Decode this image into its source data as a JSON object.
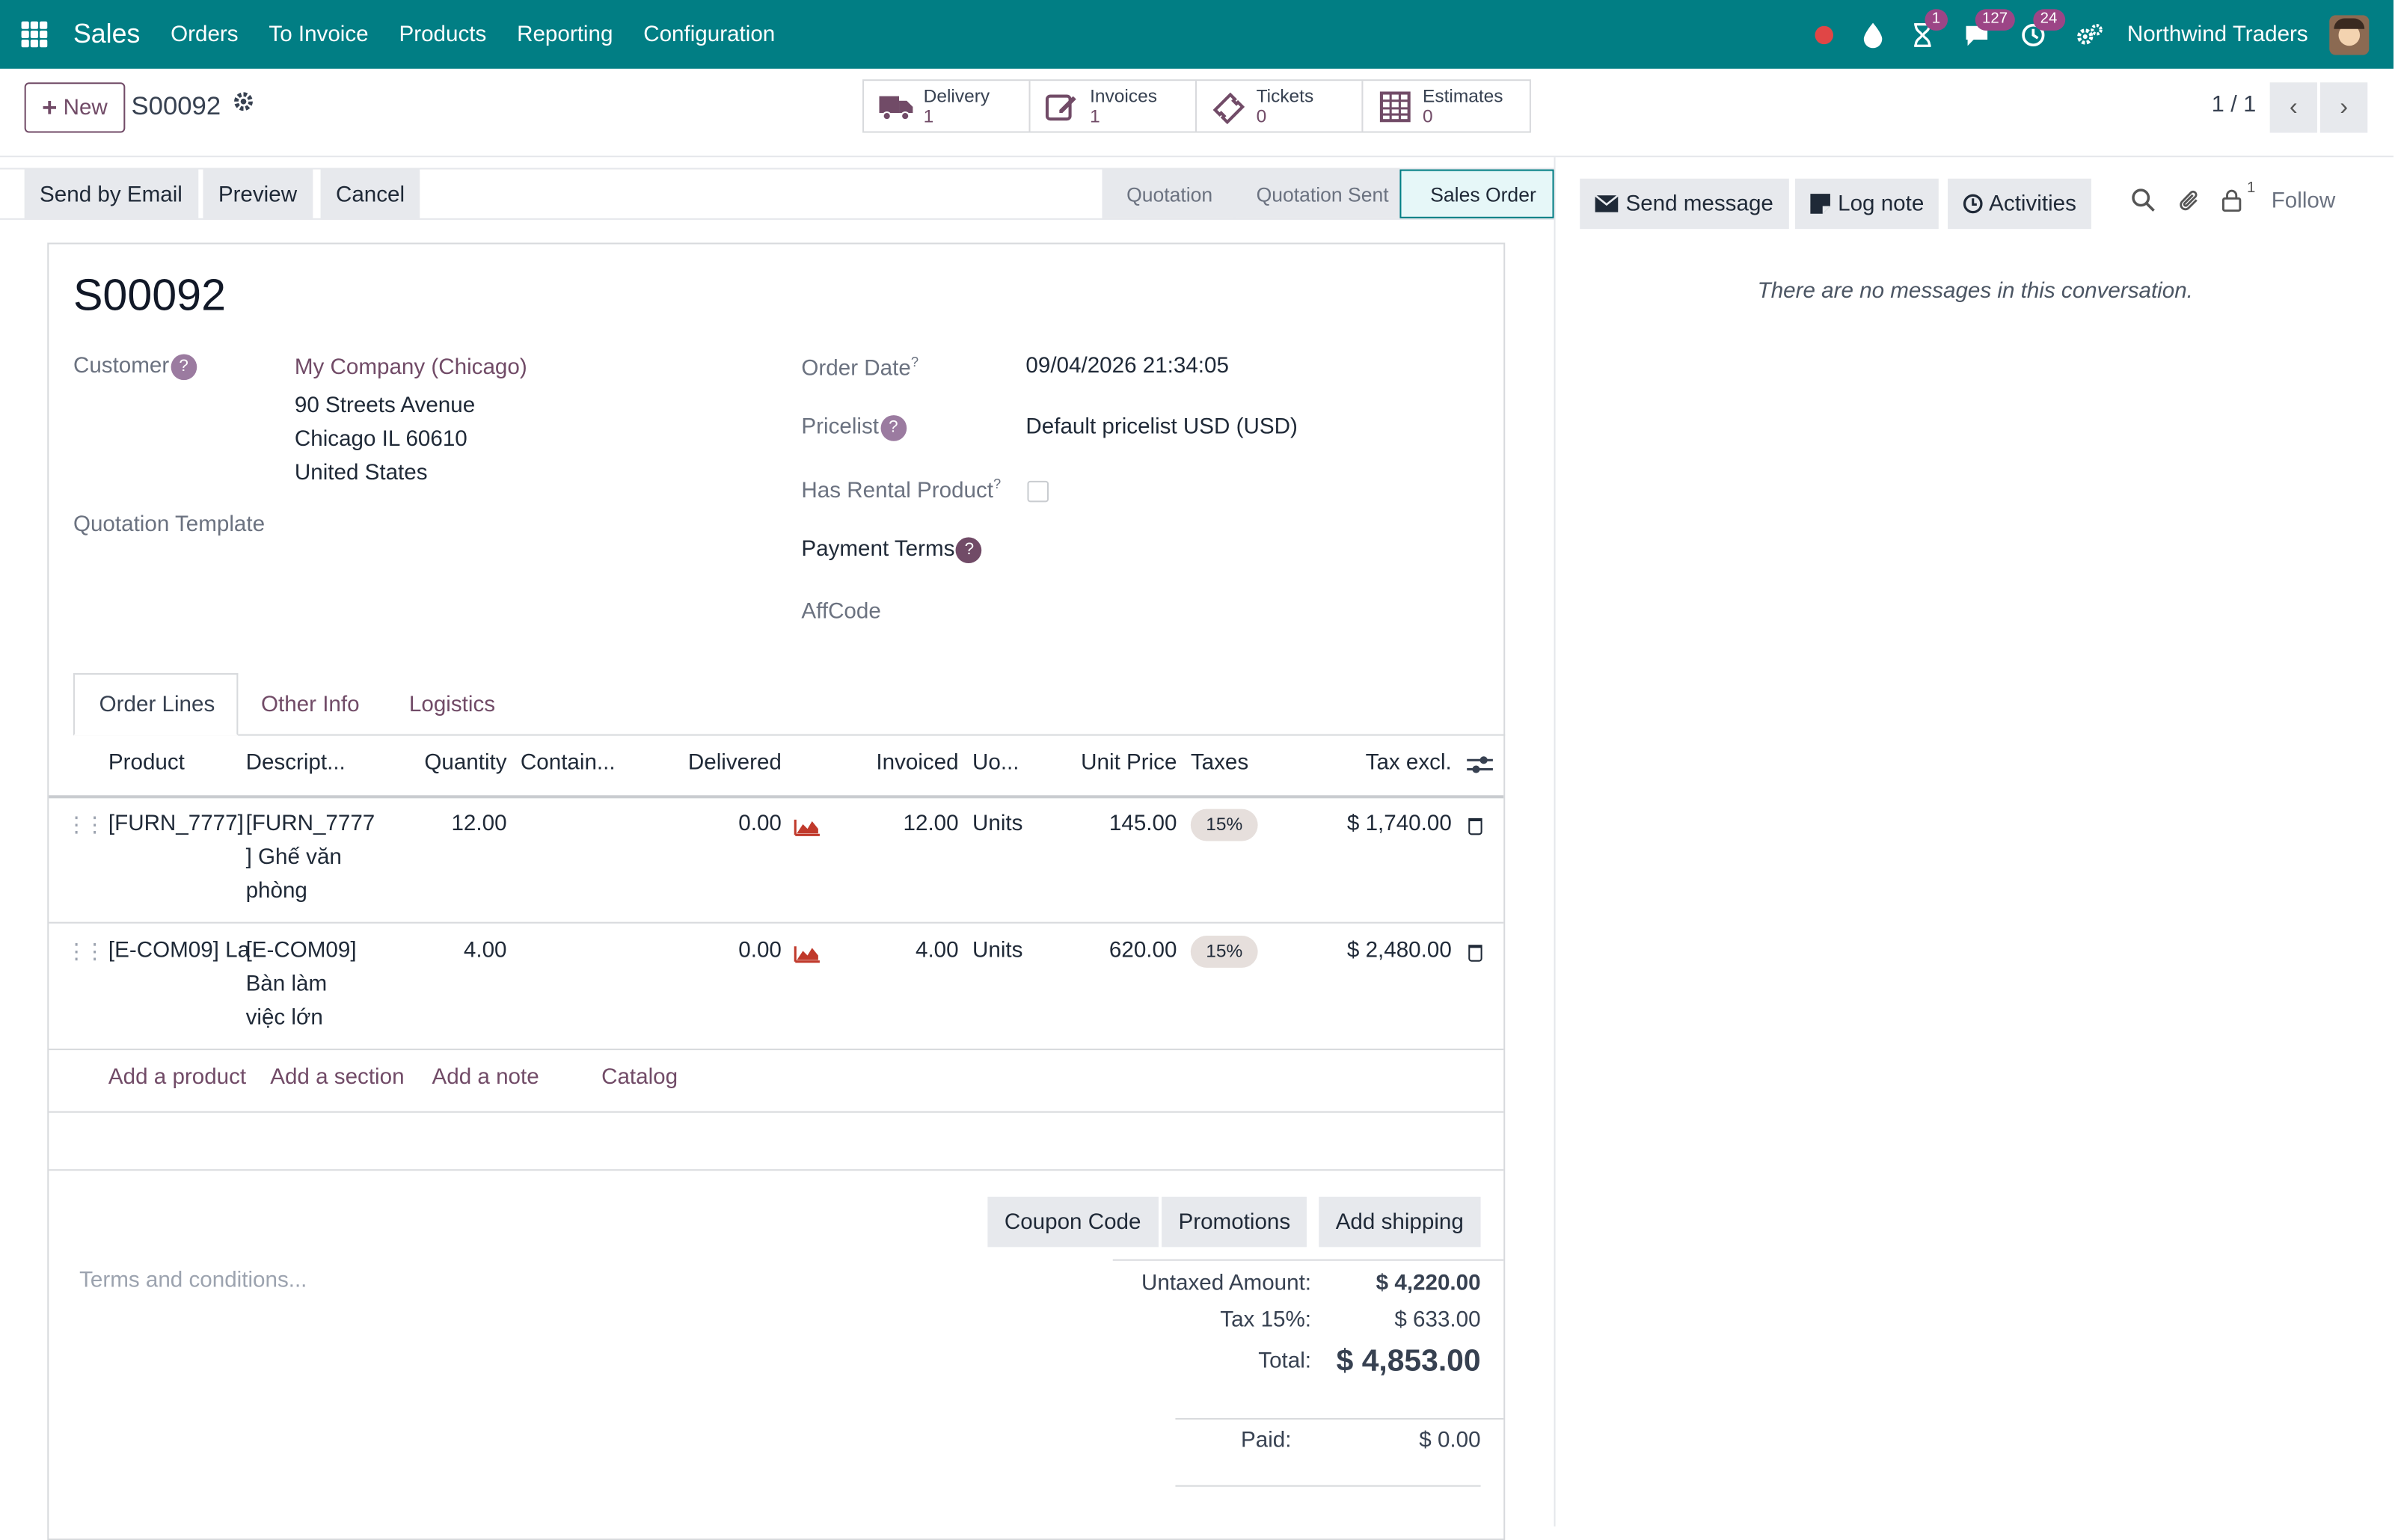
{
  "navbar": {
    "app_name": "Sales",
    "menu": [
      "Orders",
      "To Invoice",
      "Products",
      "Reporting",
      "Configuration"
    ],
    "badges": {
      "activity": "1",
      "messages": "127",
      "clock": "24"
    },
    "company": "Northwind Traders"
  },
  "control_panel": {
    "new_label": "New",
    "record": "S00092",
    "smart_buttons": [
      {
        "label": "Delivery",
        "value": "1",
        "icon": "truck-icon"
      },
      {
        "label": "Invoices",
        "value": "1",
        "icon": "invoice-edit-icon"
      },
      {
        "label": "Tickets",
        "value": "0",
        "icon": "ticket-icon"
      },
      {
        "label": "Estimates",
        "value": "0",
        "icon": "table-grid-icon"
      }
    ],
    "pager": "1 / 1"
  },
  "actions": {
    "send_email": "Send by Email",
    "preview": "Preview",
    "cancel": "Cancel"
  },
  "stages": {
    "quotation": "Quotation",
    "sent": "Quotation Sent",
    "order": "Sales Order"
  },
  "form": {
    "title": "S00092",
    "customer_label": "Customer",
    "customer_name": "My Company (Chicago)",
    "address1": "90 Streets Avenue",
    "address2": "Chicago IL 60610",
    "address3": "United States",
    "template_label": "Quotation Template",
    "order_date_label": "Order Date",
    "order_date": "09/04/2026 21:34:05",
    "pricelist_label": "Pricelist",
    "pricelist": "Default pricelist USD (USD)",
    "rental_label": "Has Rental Product",
    "payment_terms_label": "Payment Terms",
    "affcode_label": "AffCode"
  },
  "tabs": {
    "order_lines": "Order Lines",
    "other_info": "Other Info",
    "logistics": "Logistics"
  },
  "table": {
    "headers": {
      "product": "Product",
      "description": "Descript...",
      "quantity": "Quantity",
      "container": "Contain...",
      "delivered": "Delivered",
      "invoiced": "Invoiced",
      "uom": "Uo...",
      "unit_price": "Unit Price",
      "taxes": "Taxes",
      "subtotal": "Tax excl."
    },
    "rows": [
      {
        "product": "[FURN_7777]",
        "desc1": "[FURN_7777",
        "desc2": "] Ghế văn",
        "desc3": "phòng",
        "quantity": "12.00",
        "delivered": "0.00",
        "invoiced": "12.00",
        "uom": "Units",
        "unit_price": "145.00",
        "tax": "15%",
        "subtotal": "$ 1,740.00"
      },
      {
        "product": "[E-COM09] La",
        "desc1": "[E-COM09]",
        "desc2": "Bàn làm",
        "desc3": "việc lớn",
        "quantity": "4.00",
        "delivered": "0.00",
        "invoiced": "4.00",
        "uom": "Units",
        "unit_price": "620.00",
        "tax": "15%",
        "subtotal": "$ 2,480.00"
      }
    ],
    "add_product": "Add a product",
    "add_section": "Add a section",
    "add_note": "Add a note",
    "catalog": "Catalog"
  },
  "footer": {
    "coupon": "Coupon Code",
    "promotions": "Promotions",
    "shipping": "Add shipping",
    "terms_placeholder": "Terms and conditions...",
    "untaxed_label": "Untaxed Amount:",
    "untaxed": "$ 4,220.00",
    "tax_label": "Tax 15%:",
    "tax": "$ 633.00",
    "total_label": "Total:",
    "total": "$ 4,853.00",
    "paid_label": "Paid:",
    "paid": "$ 0.00"
  },
  "chatter": {
    "send_message": "Send message",
    "log_note": "Log note",
    "activities": "Activities",
    "followers": "1",
    "follow": "Follow",
    "empty": "There are no messages in this conversation."
  },
  "colors": {
    "navbar": "#017e84",
    "brand": "#714b67",
    "badge": "#9c4586"
  }
}
